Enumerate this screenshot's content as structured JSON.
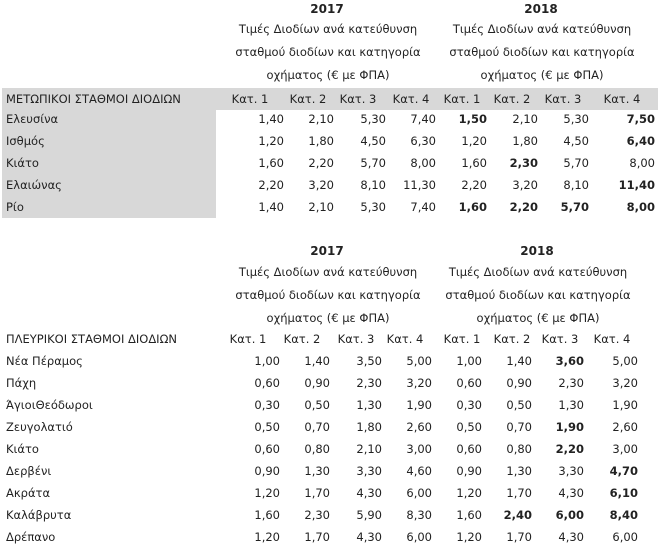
{
  "table1": {
    "title": "ΜΕΤΩΠΙΚΟΙ ΣΤΑΘΜΟΙ ΔΙΟΔΙΩΝ",
    "year_2017": "2017",
    "year_2018": "2018",
    "desc_2017": [
      "Τιμές Διοδίων ανά κατεύθυνση",
      "σταθμού διοδίων και κατηγορία",
      "οχήματος (€ με ΦΠΑ)"
    ],
    "desc_2018": [
      "Τιμές Διοδίων ανά κατεύθυνση",
      "σταθμού διοδίων και κατηγορία",
      "οχήματος (€ με ΦΠΑ)"
    ],
    "cat_headers": [
      "Κατ. 1",
      "Κατ. 2",
      "Κατ. 3",
      "Κατ. 4",
      "Κατ. 1",
      "Κατ. 2",
      "Κατ. 3",
      "Κατ. 4"
    ],
    "rows": [
      {
        "name": "Ελευσίνα",
        "values": [
          "1,40",
          "2,10",
          "5,30",
          "7,40",
          "1,50",
          "2,10",
          "5,30",
          "7,50"
        ],
        "bold": [
          false,
          false,
          false,
          false,
          true,
          false,
          false,
          true
        ]
      },
      {
        "name": "Ισθμός",
        "values": [
          "1,20",
          "1,80",
          "4,50",
          "6,30",
          "1,20",
          "1,80",
          "4,50",
          "6,40"
        ],
        "bold": [
          false,
          false,
          false,
          false,
          false,
          false,
          false,
          true
        ]
      },
      {
        "name": "Κιάτο",
        "values": [
          "1,60",
          "2,20",
          "5,70",
          "8,00",
          "1,60",
          "2,30",
          "5,70",
          "8,00"
        ],
        "bold": [
          false,
          false,
          false,
          false,
          false,
          true,
          false,
          false
        ]
      },
      {
        "name": "Ελαιώνας",
        "values": [
          "2,20",
          "3,20",
          "8,10",
          "11,30",
          "2,20",
          "3,20",
          "8,10",
          "11,40"
        ],
        "bold": [
          false,
          false,
          false,
          false,
          false,
          false,
          false,
          true
        ]
      },
      {
        "name": "Ρίο",
        "values": [
          "1,40",
          "2,10",
          "5,30",
          "7,40",
          "1,60",
          "2,20",
          "5,70",
          "8,00"
        ],
        "bold": [
          false,
          false,
          false,
          false,
          true,
          true,
          true,
          true
        ]
      }
    ]
  },
  "table2": {
    "title": "ΠΛΕΥΡΙΚΟΙ ΣΤΑΘΜΟΙ ΔΙΟΔΙΩΝ",
    "year_2017": "2017",
    "year_2018": "2018",
    "desc_2017": [
      "Τιμές Διοδίων ανά κατεύθυνση",
      "σταθμού διοδίων και κατηγορία",
      "οχήματος (€ με ΦΠΑ)"
    ],
    "desc_2018": [
      "Τιμές Διοδίων ανά κατεύθυνση",
      "σταθμού διοδίων και κατηγορία",
      "οχήματος (€ με ΦΠΑ)"
    ],
    "cat_headers": [
      "Κατ. 1",
      "Κατ. 2",
      "Κατ. 3",
      "Κατ. 4",
      "Κατ. 1",
      "Κατ. 2",
      "Κατ. 3",
      "Κατ. 4"
    ],
    "rows": [
      {
        "name": "Νέα Πέραμος",
        "values": [
          "1,00",
          "1,40",
          "3,50",
          "5,00",
          "1,00",
          "1,40",
          "3,60",
          "5,00"
        ],
        "bold": [
          false,
          false,
          false,
          false,
          false,
          false,
          true,
          false
        ]
      },
      {
        "name": "Πάχη",
        "values": [
          "0,60",
          "0,90",
          "2,30",
          "3,20",
          "0,60",
          "0,90",
          "2,30",
          "3,20"
        ],
        "bold": [
          false,
          false,
          false,
          false,
          false,
          false,
          false,
          false
        ]
      },
      {
        "name": "ΆγιοιΘεόδωροι",
        "values": [
          "0,30",
          "0,50",
          "1,30",
          "1,90",
          "0,30",
          "0,50",
          "1,30",
          "1,90"
        ],
        "bold": [
          false,
          false,
          false,
          false,
          false,
          false,
          false,
          false
        ]
      },
      {
        "name": "Ζευγολατιό",
        "values": [
          "0,50",
          "0,70",
          "1,80",
          "2,60",
          "0,50",
          "0,70",
          "1,90",
          "2,60"
        ],
        "bold": [
          false,
          false,
          false,
          false,
          false,
          false,
          true,
          false
        ]
      },
      {
        "name": "Κιάτο",
        "values": [
          "0,60",
          "0,80",
          "2,10",
          "3,00",
          "0,60",
          "0,80",
          "2,20",
          "3,00"
        ],
        "bold": [
          false,
          false,
          false,
          false,
          false,
          false,
          true,
          false
        ]
      },
      {
        "name": "Δερβένι",
        "values": [
          "0,90",
          "1,30",
          "3,30",
          "4,60",
          "0,90",
          "1,30",
          "3,30",
          "4,70"
        ],
        "bold": [
          false,
          false,
          false,
          false,
          false,
          false,
          false,
          true
        ]
      },
      {
        "name": "Ακράτα",
        "values": [
          "1,20",
          "1,70",
          "4,30",
          "6,00",
          "1,20",
          "1,70",
          "4,30",
          "6,10"
        ],
        "bold": [
          false,
          false,
          false,
          false,
          false,
          false,
          false,
          true
        ]
      },
      {
        "name": "Καλάβρυτα",
        "values": [
          "1,60",
          "2,30",
          "5,90",
          "8,30",
          "1,60",
          "2,40",
          "6,00",
          "8,40"
        ],
        "bold": [
          false,
          false,
          false,
          false,
          false,
          true,
          true,
          true
        ]
      },
      {
        "name": "Δρέπανο",
        "values": [
          "1,20",
          "1,70",
          "4,30",
          "6,00",
          "1,20",
          "1,70",
          "4,30",
          "6,00"
        ],
        "bold": [
          false,
          false,
          false,
          false,
          false,
          false,
          false,
          false
        ]
      }
    ]
  }
}
